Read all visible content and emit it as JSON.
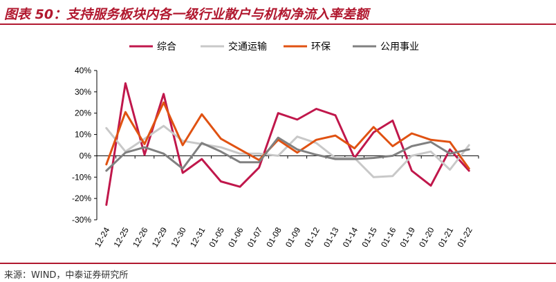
{
  "title": "图表 50：支持服务板块内各一级行业散户与机构净流入率差额",
  "source": "来源：WIND，中泰证券研究所",
  "chart_data": {
    "type": "line",
    "categories": [
      "12-24",
      "12-25",
      "12-26",
      "12-29",
      "12-30",
      "12-31",
      "01-05",
      "01-06",
      "01-07",
      "01-08",
      "01-09",
      "01-12",
      "01-13",
      "01-14",
      "01-15",
      "01-16",
      "01-19",
      "01-20",
      "01-21",
      "01-22"
    ],
    "ylim": [
      -30,
      40
    ],
    "yticks": [
      -30,
      -20,
      -10,
      0,
      10,
      20,
      30,
      40
    ],
    "ytick_labels": [
      "-30%",
      "-20%",
      "-10%",
      "0%",
      "10%",
      "20%",
      "30%",
      "40%"
    ],
    "legend_position": "top",
    "grid": false,
    "series": [
      {
        "name": "综合",
        "color": "#c0174b",
        "values": [
          -23,
          34,
          0.5,
          29,
          -8,
          -1.5,
          -12,
          -14.5,
          -5.5,
          20,
          17,
          22,
          19,
          -1,
          11,
          16.5,
          -7,
          -14,
          3,
          -7
        ]
      },
      {
        "name": "交通运输",
        "color": "#c8c8c8",
        "values": [
          13,
          2,
          8,
          14,
          7,
          5.5,
          4,
          1,
          1,
          0,
          9,
          6,
          -1,
          -1,
          -10,
          -9.5,
          0,
          2,
          -6.5,
          5
        ]
      },
      {
        "name": "环保",
        "color": "#e05212",
        "values": [
          -4,
          20.5,
          5.5,
          25,
          5,
          19.5,
          8,
          3,
          -2,
          7.5,
          1.5,
          7.5,
          9.5,
          3.5,
          13.5,
          4.5,
          10.5,
          7.5,
          6.5,
          -6
        ]
      },
      {
        "name": "公用事业",
        "color": "#808080",
        "values": [
          -7,
          1.5,
          4,
          1,
          -6,
          6,
          2,
          -3,
          -3,
          8.5,
          3,
          0.5,
          -1.5,
          -1.5,
          -1,
          0,
          4.5,
          6.5,
          1,
          3
        ]
      }
    ]
  }
}
